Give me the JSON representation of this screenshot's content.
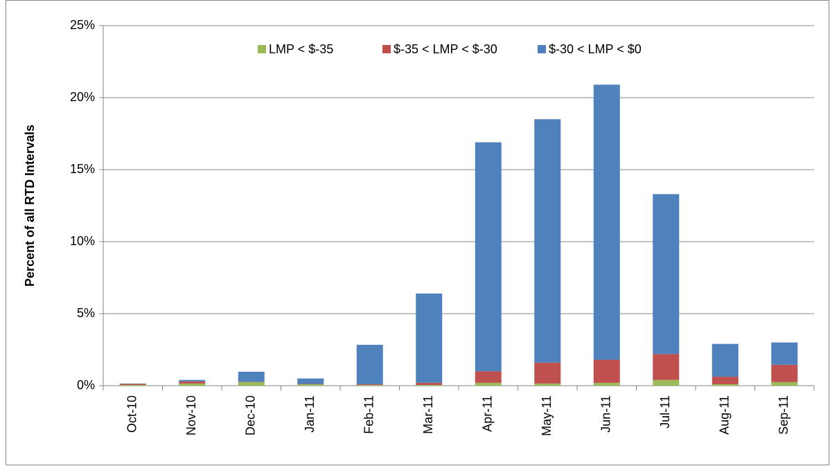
{
  "chart_data": {
    "type": "stacked_bar",
    "y_label": "Percent of all RTD Intervals",
    "categories": [
      "Oct-10",
      "Nov-10",
      "Dec-10",
      "Jan-11",
      "Feb-11",
      "Mar-11",
      "Apr-11",
      "May-11",
      "Jun-11",
      "Jul-11",
      "Aug-11",
      "Sep-11"
    ],
    "series": [
      {
        "name": "LMP < $-35",
        "color": "#9bbb59",
        "values": [
          0.05,
          0.15,
          0.25,
          0.1,
          0.05,
          0.05,
          0.2,
          0.15,
          0.2,
          0.4,
          0.1,
          0.25
        ]
      },
      {
        "name": "$-35 < LMP < $-30",
        "color": "#c0504d",
        "values": [
          0.08,
          0.15,
          0.02,
          0.02,
          0.05,
          0.15,
          0.8,
          1.45,
          1.6,
          1.8,
          0.52,
          1.2
        ]
      },
      {
        "name": "$-30 < LMP < $0",
        "color": "#4f81bd",
        "values": [
          0.02,
          0.1,
          0.7,
          0.38,
          2.74,
          6.2,
          15.9,
          16.9,
          19.1,
          11.1,
          2.28,
          1.55
        ]
      }
    ],
    "ylim": [
      0,
      25
    ],
    "yticks": [
      {
        "value": 0,
        "label": "0%"
      },
      {
        "value": 5,
        "label": "5%"
      },
      {
        "value": 10,
        "label": "10%"
      },
      {
        "value": 15,
        "label": "15%"
      },
      {
        "value": 20,
        "label": "20%"
      },
      {
        "value": 25,
        "label": "25%"
      }
    ],
    "grid": true,
    "legend": "top"
  }
}
